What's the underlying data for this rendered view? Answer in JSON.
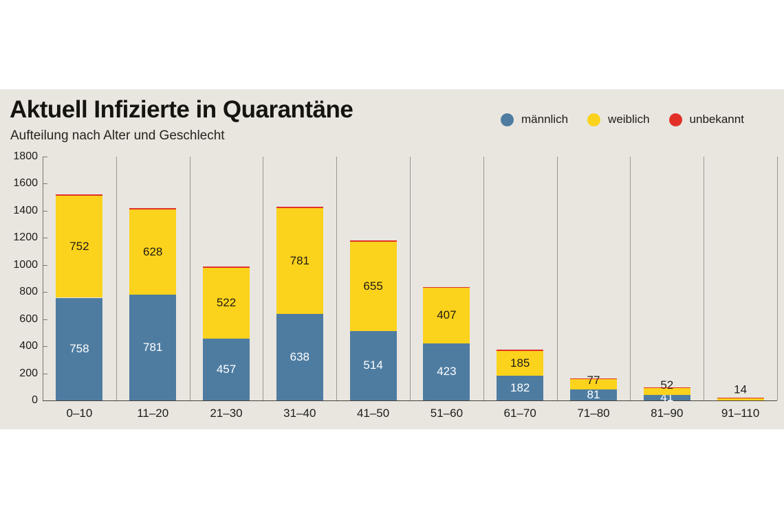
{
  "page": {
    "background": "#ffffff"
  },
  "card": {
    "background": "#e9e6e0"
  },
  "header": {
    "title": "Aktuell Infizierte in Quarantäne",
    "subtitle": "Aufteilung nach Alter und Geschlecht"
  },
  "legend": {
    "position": "top-right",
    "items": [
      {
        "label": "männlich",
        "color": "#4e7ca1"
      },
      {
        "label": "weiblich",
        "color": "#fbd21c"
      },
      {
        "label": "unbekannt",
        "color": "#e23028"
      }
    ]
  },
  "chart_data": {
    "type": "bar",
    "stacked": true,
    "title": "Aktuell Infizierte in Quarantäne",
    "subtitle": "Aufteilung nach Alter und Geschlecht",
    "categories": [
      "0–10",
      "11–20",
      "21–30",
      "31–40",
      "41–50",
      "51–60",
      "61–70",
      "71–80",
      "81–90",
      "91–110"
    ],
    "series": [
      {
        "name": "männlich",
        "color": "#4e7ca1",
        "label_color": "#ffffff",
        "show_labels": true,
        "values": [
          758,
          781,
          457,
          638,
          514,
          423,
          182,
          81,
          41,
          0
        ]
      },
      {
        "name": "weiblich",
        "color": "#fbd21c",
        "label_color": "#1e1c17",
        "show_labels": true,
        "values": [
          752,
          628,
          522,
          781,
          655,
          407,
          185,
          77,
          52,
          14
        ]
      },
      {
        "name": "unbekannt",
        "color": "#e23028",
        "show_labels": false,
        "estimated": true,
        "values": [
          12,
          10,
          10,
          12,
          10,
          8,
          8,
          6,
          5,
          3
        ]
      }
    ],
    "ylim": [
      0,
      1800
    ],
    "ytick_step": 200,
    "yticks": [
      0,
      200,
      400,
      600,
      800,
      1000,
      1200,
      1400,
      1600,
      1800
    ],
    "xlabel": "",
    "ylabel": "",
    "grid": "vertical-column-separators",
    "legend_position": "top-right",
    "colors": {
      "axis": "#7a756c",
      "baseline": "#44403a",
      "separator": "#9b978f",
      "text": "#1d1b16"
    }
  }
}
